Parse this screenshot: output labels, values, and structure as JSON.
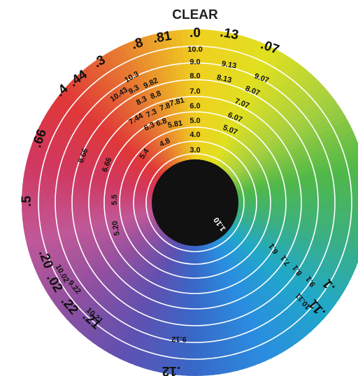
{
  "title": "CLEAR",
  "colors": {
    "center": "#111111",
    "ring_line": "#ffffff",
    "hues": [
      "#f0d020",
      "#e0e020",
      "#a8d040",
      "#50b848",
      "#3cb080",
      "#20a8c8",
      "#2a8ee0",
      "#3868c8",
      "#6050b0",
      "#9050a0",
      "#c05898",
      "#d03860",
      "#e03838",
      "#e88030",
      "#f0d020"
    ]
  },
  "rings": [
    "1.0",
    "3.0",
    "4.0",
    "5.0",
    "6.0",
    "7.0",
    "8.0",
    "9.0",
    "10.0"
  ],
  "labels": [
    {
      "id": "rim-0",
      "text": ".0"
    },
    {
      "id": "rim-13",
      "text": ".13"
    },
    {
      "id": "rim-07",
      "text": ".07"
    },
    {
      "id": "rim-81",
      "text": ".81"
    },
    {
      "id": "rim-8",
      "text": ".8"
    },
    {
      "id": "rim-3",
      "text": ".3"
    },
    {
      "id": "rim-44",
      "text": ".44"
    },
    {
      "id": "rim-4",
      "text": ".4"
    },
    {
      "id": "rim-66",
      "text": ".66"
    },
    {
      "id": "rim-5",
      "text": ".5"
    },
    {
      "id": "rim-20",
      "text": ".20"
    },
    {
      "id": "rim-02",
      "text": ".02"
    },
    {
      "id": "rim-22",
      "text": ".22"
    },
    {
      "id": "rim-21",
      "text": ".21"
    },
    {
      "id": "rim-12",
      "text": ".12"
    },
    {
      "id": "rim-11",
      "text": ".11"
    },
    {
      "id": "rim-1",
      "text": ".1"
    },
    {
      "id": "v-913",
      "text": "9.13"
    },
    {
      "id": "v-907",
      "text": "9.07"
    },
    {
      "id": "v-813",
      "text": "8.13"
    },
    {
      "id": "v-807",
      "text": "8.07"
    },
    {
      "id": "v-707",
      "text": "7.07"
    },
    {
      "id": "v-607",
      "text": "6.07"
    },
    {
      "id": "v-507",
      "text": "5.07"
    },
    {
      "id": "v-103",
      "text": "10.3"
    },
    {
      "id": "v-1043",
      "text": "10.43"
    },
    {
      "id": "v-93",
      "text": "9.3"
    },
    {
      "id": "v-982",
      "text": "9.82"
    },
    {
      "id": "v-83",
      "text": "8.3"
    },
    {
      "id": "v-88",
      "text": "8.8"
    },
    {
      "id": "v-744",
      "text": "7.44"
    },
    {
      "id": "v-73",
      "text": "7.3"
    },
    {
      "id": "v-78",
      "text": "7.8"
    },
    {
      "id": "v-781",
      "text": "7.81"
    },
    {
      "id": "v-63",
      "text": "6.3"
    },
    {
      "id": "v-68",
      "text": "6.8"
    },
    {
      "id": "v-581",
      "text": "5.81"
    },
    {
      "id": "v-48",
      "text": "4.8"
    },
    {
      "id": "v-54",
      "text": "5.4"
    },
    {
      "id": "v-666",
      "text": "6.66"
    },
    {
      "id": "v-866",
      "text": "8.66"
    },
    {
      "id": "v-55",
      "text": "5.5"
    },
    {
      "id": "v-520",
      "text": "5.20"
    },
    {
      "id": "v-110",
      "text": "1.10"
    },
    {
      "id": "v-61",
      "text": "6.1"
    },
    {
      "id": "v-71",
      "text": "7.1"
    },
    {
      "id": "v-81",
      "text": "8.1"
    },
    {
      "id": "v-91",
      "text": "9.1"
    },
    {
      "id": "v-1011",
      "text": "10.11"
    },
    {
      "id": "v-1002",
      "text": "10.02"
    },
    {
      "id": "v-922",
      "text": "9.22"
    },
    {
      "id": "v-1021",
      "text": "10.21"
    },
    {
      "id": "v-912",
      "text": "9.12"
    }
  ]
}
